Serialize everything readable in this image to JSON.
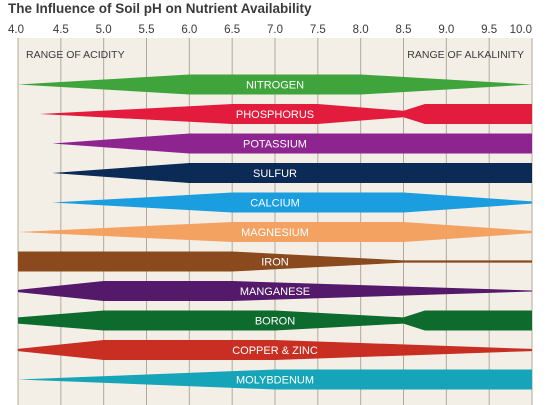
{
  "chart_data": {
    "type": "band",
    "title": "The Influence of Soil pH on Nutrient Availability",
    "xlabel": "",
    "ylabel": "",
    "x_ticks": [
      "4.0",
      "4.5",
      "5.0",
      "5.5",
      "6.0",
      "6.5",
      "7.0",
      "7.5",
      "8.0",
      "8.5",
      "9.0",
      "9.5",
      "10.0"
    ],
    "xlim": [
      4.0,
      10.0
    ],
    "grid": true,
    "range_labels": {
      "acidity": "RANGE OF ACIDITY",
      "alkalinity": "RANGE OF ALKALINITY"
    },
    "nutrients": [
      {
        "name": "NITROGEN",
        "color": "#3fa43c",
        "profile": [
          [
            4.0,
            0
          ],
          [
            6.0,
            0.95
          ],
          [
            8.0,
            0.95
          ],
          [
            10.0,
            0
          ]
        ]
      },
      {
        "name": "PHOSPHORUS",
        "color": "#e31c3d",
        "profile": [
          [
            4.25,
            0
          ],
          [
            6.5,
            0.95
          ],
          [
            7.5,
            0.95
          ],
          [
            8.5,
            0.3
          ],
          [
            8.75,
            0.95
          ],
          [
            10.0,
            0.95
          ]
        ]
      },
      {
        "name": "POTASSIUM",
        "color": "#8e2490",
        "profile": [
          [
            4.4,
            0
          ],
          [
            6.0,
            0.95
          ],
          [
            10.0,
            0.95
          ]
        ]
      },
      {
        "name": "SULFUR",
        "color": "#0b2a55",
        "profile": [
          [
            4.4,
            0
          ],
          [
            6.0,
            0.95
          ],
          [
            10.0,
            0.95
          ]
        ]
      },
      {
        "name": "CALCIUM",
        "color": "#1a9ee0",
        "profile": [
          [
            4.4,
            0
          ],
          [
            6.5,
            0.95
          ],
          [
            8.5,
            0.95
          ],
          [
            10.0,
            0.1
          ]
        ]
      },
      {
        "name": "MAGNESIUM",
        "color": "#f4a261",
        "profile": [
          [
            4.0,
            0
          ],
          [
            6.5,
            0.95
          ],
          [
            8.5,
            0.95
          ],
          [
            10.0,
            0.1
          ]
        ]
      },
      {
        "name": "IRON",
        "color": "#8b4a1e",
        "profile": [
          [
            4.0,
            0.95
          ],
          [
            6.5,
            0.95
          ],
          [
            8.5,
            0.1
          ],
          [
            10.0,
            0.1
          ]
        ]
      },
      {
        "name": "MANGANESE",
        "color": "#54196b",
        "profile": [
          [
            4.0,
            0.1
          ],
          [
            5.0,
            0.95
          ],
          [
            6.5,
            0.95
          ],
          [
            10.0,
            0.05
          ]
        ]
      },
      {
        "name": "BORON",
        "color": "#0e6b2e",
        "profile": [
          [
            4.0,
            0.3
          ],
          [
            5.0,
            0.95
          ],
          [
            7.0,
            0.95
          ],
          [
            8.5,
            0.3
          ],
          [
            8.75,
            0.95
          ],
          [
            10.0,
            0.95
          ]
        ]
      },
      {
        "name": "COPPER & ZINC",
        "color": "#c92e22",
        "profile": [
          [
            4.0,
            0.1
          ],
          [
            5.0,
            0.95
          ],
          [
            7.0,
            0.95
          ],
          [
            10.0,
            0.1
          ]
        ]
      },
      {
        "name": "MOLYBDENUM",
        "color": "#16a5b8",
        "profile": [
          [
            4.0,
            0
          ],
          [
            7.0,
            0.95
          ],
          [
            10.0,
            0.95
          ]
        ]
      }
    ],
    "colors": {
      "background": "#f3efe7",
      "grid": "#b3a99a",
      "axis_text": "#3a3a3a"
    }
  }
}
